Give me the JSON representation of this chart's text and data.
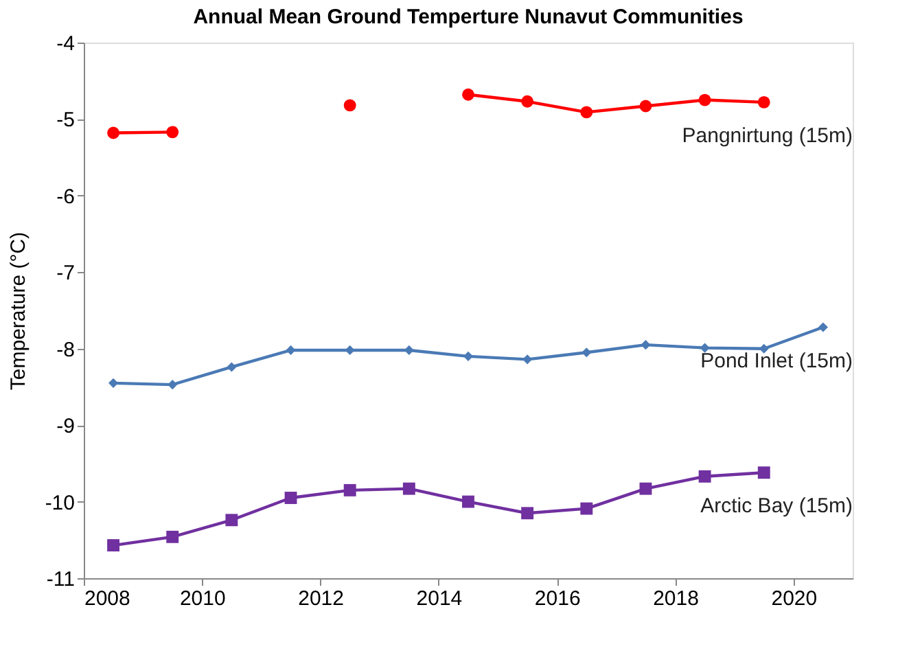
{
  "chart_data": {
    "type": "line",
    "title": "Annual Mean Ground Temperture Nunavut Communities",
    "ylabel": "Temperature (°C)",
    "x": [
      2008.5,
      2009.5,
      2010.5,
      2011.5,
      2012.5,
      2013.5,
      2014.5,
      2015.5,
      2016.5,
      2017.5,
      2018.5,
      2019.5,
      2020.5
    ],
    "series": [
      {
        "name": "Pangnirtung (15m)",
        "color": "#ff0000",
        "marker": "circle",
        "values": [
          -5.18,
          -5.17,
          null,
          null,
          -4.82,
          null,
          -4.68,
          -4.77,
          -4.91,
          -4.83,
          -4.75,
          -4.78,
          null
        ]
      },
      {
        "name": "Pond Inlet (15m)",
        "color": "#4a7ab5",
        "marker": "diamond",
        "values": [
          -8.45,
          -8.47,
          -8.24,
          -8.02,
          -8.02,
          -8.02,
          -8.1,
          -8.14,
          -8.05,
          -7.95,
          -7.99,
          -8.0,
          -7.72
        ]
      },
      {
        "name": "Arctic Bay (15m)",
        "color": "#7030a0",
        "marker": "square",
        "values": [
          -10.57,
          -10.46,
          -10.24,
          -9.95,
          -9.85,
          -9.83,
          -10.0,
          -10.15,
          -10.09,
          -9.83,
          -9.67,
          -9.62,
          null
        ]
      }
    ],
    "xlim": [
      2008,
      2021
    ],
    "xticks": [
      2008,
      2010,
      2012,
      2014,
      2016,
      2018,
      2020
    ],
    "ylim": [
      -11,
      -4
    ],
    "yticks": [
      -11,
      -10,
      -9,
      -8,
      -7,
      -6,
      -5,
      -4
    ],
    "grid": false,
    "legend": false
  }
}
